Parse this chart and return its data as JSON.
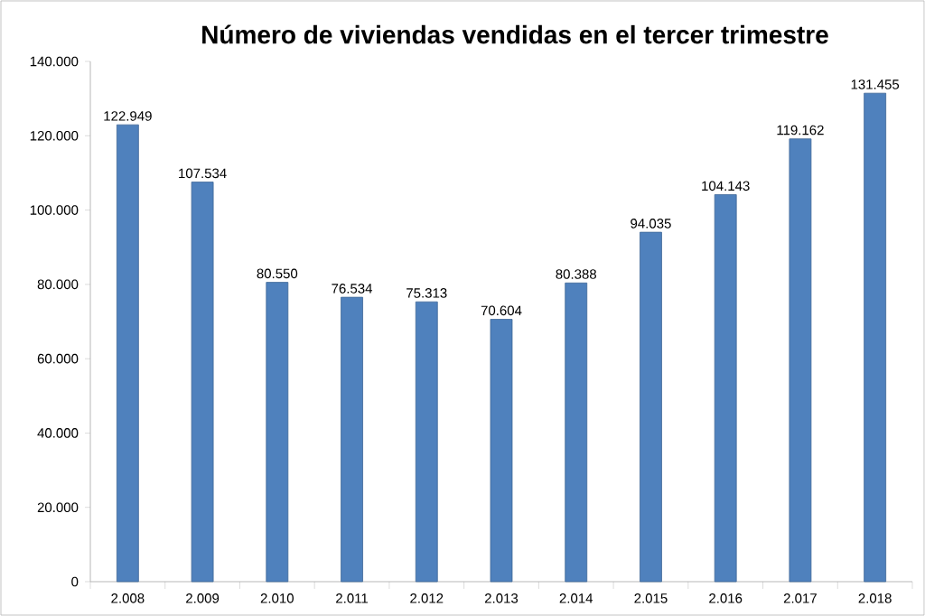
{
  "chart_data": {
    "type": "bar",
    "title": "Número de viviendas vendidas en el tercer trimestre",
    "categories": [
      "2.008",
      "2.009",
      "2.010",
      "2.011",
      "2.012",
      "2.013",
      "2.014",
      "2.015",
      "2.016",
      "2.017",
      "2.018"
    ],
    "values": [
      122949,
      107534,
      80550,
      76534,
      75313,
      70604,
      80388,
      94035,
      104143,
      119162,
      131455
    ],
    "value_labels": [
      "122.949",
      "107.534",
      "80.550",
      "76.534",
      "75.313",
      "70.604",
      "80.388",
      "94.035",
      "104.143",
      "119.162",
      "131.455"
    ],
    "color": "#4f81bd",
    "ylim": [
      0,
      140000
    ],
    "yticks": [
      0,
      {
        "value": 20000,
        "label": "20.000"
      },
      {
        "value": 40000,
        "label": "40.000"
      },
      {
        "value": 60000,
        "label": "60.000"
      },
      {
        "value": 80000,
        "label": "80.000"
      },
      {
        "value": 100000,
        "label": "100.000"
      },
      {
        "value": 120000,
        "label": "120.000"
      },
      {
        "value": 140000,
        "label": "140.000"
      }
    ],
    "grid": false
  }
}
